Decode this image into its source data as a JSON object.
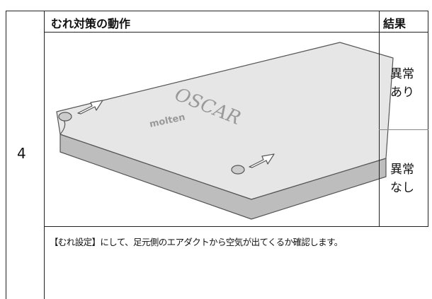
{
  "row": {
    "number": "4",
    "header": {
      "action": "むれ対策の動作",
      "result": "結果"
    },
    "results": [
      [
        "異常",
        "あり"
      ],
      [
        "異常",
        "なし"
      ]
    ],
    "illustration": {
      "brand": "OSCAR",
      "maker": "molten"
    },
    "note": "【むれ設定】にして、足元側のエアダクトから空気が出てくるか確認します。"
  }
}
